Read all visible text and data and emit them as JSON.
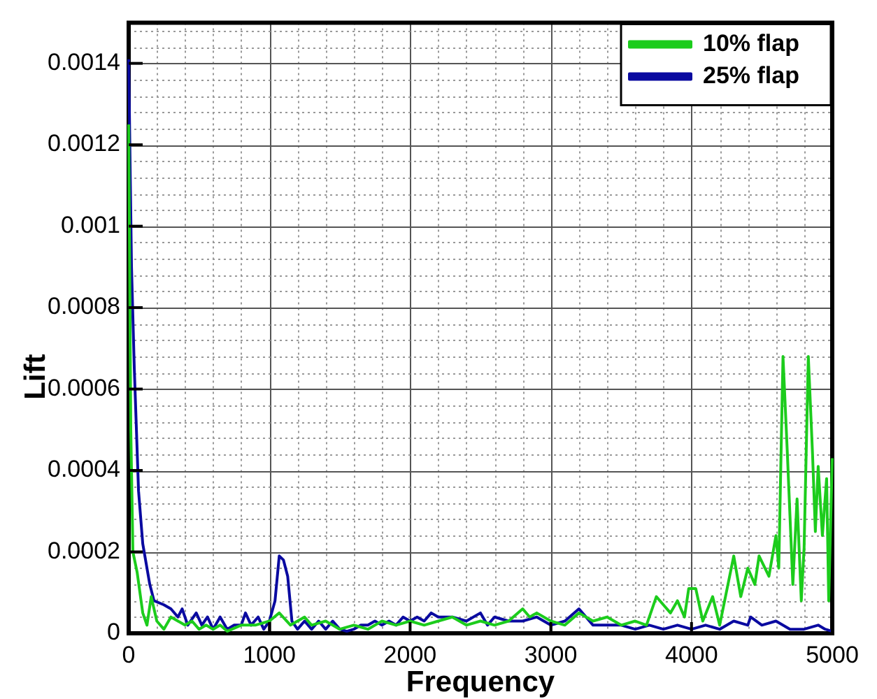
{
  "chart_data": {
    "type": "line",
    "xlabel": "Frequency",
    "ylabel": "Lift",
    "xlim": [
      0,
      5000
    ],
    "ylim": [
      0,
      0.0015
    ],
    "xticks": [
      0,
      {
        "value": 200,
        "label": null
      },
      {
        "value": 400,
        "label": null
      },
      {
        "value": 600,
        "label": null
      },
      {
        "value": 800,
        "label": null
      },
      1000,
      {
        "value": 1200,
        "label": null
      },
      {
        "value": 1400,
        "label": null
      },
      {
        "value": 1600,
        "label": null
      },
      {
        "value": 1800,
        "label": null
      },
      2000,
      {
        "value": 2200,
        "label": null
      },
      {
        "value": 2400,
        "label": null
      },
      {
        "value": 2600,
        "label": null
      },
      {
        "value": 2800,
        "label": null
      },
      3000,
      {
        "value": 3200,
        "label": null
      },
      {
        "value": 3400,
        "label": null
      },
      {
        "value": 3600,
        "label": null
      },
      {
        "value": 3800,
        "label": null
      },
      4000,
      {
        "value": 4200,
        "label": null
      },
      {
        "value": 4400,
        "label": null
      },
      {
        "value": 4600,
        "label": null
      },
      {
        "value": 4800,
        "label": null
      },
      5000
    ],
    "yticks": [
      0,
      {
        "value": 4e-05,
        "label": null
      },
      {
        "value": 8e-05,
        "label": null
      },
      {
        "value": 0.00012,
        "label": null
      },
      {
        "value": 0.00016,
        "label": null
      },
      0.0002,
      {
        "value": 0.00024,
        "label": null
      },
      {
        "value": 0.00028,
        "label": null
      },
      {
        "value": 0.00032,
        "label": null
      },
      {
        "value": 0.00036,
        "label": null
      },
      0.0004,
      {
        "value": 0.00044,
        "label": null
      },
      {
        "value": 0.00048,
        "label": null
      },
      {
        "value": 0.00052,
        "label": null
      },
      {
        "value": 0.00056,
        "label": null
      },
      0.0006,
      {
        "value": 0.00064,
        "label": null
      },
      {
        "value": 0.00068,
        "label": null
      },
      {
        "value": 0.00072,
        "label": null
      },
      {
        "value": 0.00076,
        "label": null
      },
      0.0008,
      {
        "value": 0.00084,
        "label": null
      },
      {
        "value": 0.00088,
        "label": null
      },
      {
        "value": 0.00092,
        "label": null
      },
      {
        "value": 0.00096,
        "label": null
      },
      0.001,
      {
        "value": 0.00104,
        "label": null
      },
      {
        "value": 0.00108,
        "label": null
      },
      {
        "value": 0.00112,
        "label": null
      },
      {
        "value": 0.00116,
        "label": null
      },
      0.0012,
      {
        "value": 0.00124,
        "label": null
      },
      {
        "value": 0.00128,
        "label": null
      },
      {
        "value": 0.00132,
        "label": null
      },
      {
        "value": 0.00136,
        "label": null
      },
      0.0014,
      {
        "value": 0.00144,
        "label": null
      },
      {
        "value": 0.00148,
        "label": null
      }
    ],
    "grid": true,
    "legend": "top right",
    "marker": "none",
    "line_style": "solid",
    "series": [
      {
        "name": "10% flap",
        "color": "#1ccc1c",
        "x": [
          0,
          15,
          30,
          60,
          100,
          130,
          160,
          200,
          250,
          300,
          350,
          400,
          450,
          500,
          550,
          600,
          650,
          700,
          800,
          900,
          1000,
          1070,
          1150,
          1250,
          1300,
          1400,
          1500,
          1600,
          1700,
          1800,
          1900,
          2000,
          2100,
          2200,
          2300,
          2400,
          2500,
          2600,
          2700,
          2800,
          2850,
          2900,
          3000,
          3100,
          3200,
          3300,
          3400,
          3500,
          3600,
          3680,
          3750,
          3800,
          3850,
          3900,
          3950,
          3980,
          4030,
          4080,
          4150,
          4200,
          4300,
          4350,
          4400,
          4450,
          4480,
          4550,
          4600,
          4620,
          4650,
          4680,
          4720,
          4750,
          4780,
          4800,
          4830,
          4860,
          4880,
          4900,
          4930,
          4960,
          4975,
          5000
        ],
        "values": [
          0.00125,
          0.0005,
          0.0002,
          0.00015,
          5e-05,
          2e-05,
          9e-05,
          3e-05,
          1e-05,
          4e-05,
          3e-05,
          2e-05,
          3e-05,
          1e-05,
          2e-05,
          1e-05,
          2e-05,
          5e-06,
          2e-05,
          2e-05,
          3e-05,
          5e-05,
          2e-05,
          4e-05,
          2e-05,
          3e-05,
          1e-05,
          2e-05,
          1e-05,
          3e-05,
          2e-05,
          3e-05,
          2e-05,
          3e-05,
          4e-05,
          2e-05,
          3e-05,
          2e-05,
          3e-05,
          6e-05,
          4e-05,
          5e-05,
          3e-05,
          2e-05,
          5e-05,
          3e-05,
          4e-05,
          2e-05,
          3e-05,
          2e-05,
          9e-05,
          7e-05,
          5e-05,
          8e-05,
          4e-05,
          0.00011,
          0.00011,
          3e-05,
          9e-05,
          2e-05,
          0.00019,
          9e-05,
          0.00016,
          0.00012,
          0.00019,
          0.00014,
          0.00024,
          0.00016,
          0.00068,
          0.00045,
          0.00012,
          0.00033,
          8e-05,
          0.00021,
          0.00068,
          0.00044,
          0.00025,
          0.00041,
          0.00024,
          0.00038,
          8e-05,
          0.00043
        ]
      },
      {
        "name": "25% flap",
        "color": "#0a0aa0",
        "x": [
          0,
          20,
          40,
          70,
          100,
          150,
          180,
          250,
          300,
          350,
          380,
          420,
          480,
          520,
          560,
          600,
          650,
          700,
          750,
          800,
          830,
          870,
          920,
          960,
          1000,
          1040,
          1070,
          1100,
          1130,
          1160,
          1200,
          1250,
          1300,
          1350,
          1400,
          1450,
          1500,
          1550,
          1600,
          1650,
          1700,
          1750,
          1800,
          1850,
          1900,
          1950,
          2000,
          2050,
          2100,
          2150,
          2200,
          2300,
          2400,
          2500,
          2550,
          2600,
          2700,
          2800,
          2900,
          3000,
          3100,
          3200,
          3300,
          3400,
          3500,
          3600,
          3700,
          3800,
          3900,
          4000,
          4100,
          4200,
          4300,
          4400,
          4420,
          4500,
          4600,
          4700,
          4800,
          4900,
          4950,
          5000
        ],
        "values": [
          0.00141,
          0.0009,
          0.00065,
          0.00035,
          0.00022,
          0.00012,
          8e-05,
          7e-05,
          6e-05,
          4e-05,
          6e-05,
          2e-05,
          5e-05,
          2e-05,
          4e-05,
          1e-05,
          4e-05,
          1e-05,
          2e-05,
          2e-05,
          5e-05,
          2e-05,
          4e-05,
          1e-05,
          3e-05,
          8e-05,
          0.00019,
          0.00018,
          0.00014,
          3e-05,
          1e-05,
          3e-05,
          1e-05,
          3e-05,
          1e-05,
          3e-05,
          1e-05,
          5e-06,
          1e-05,
          2e-05,
          2e-05,
          3e-05,
          2e-05,
          3e-05,
          2e-05,
          4e-05,
          3e-05,
          4e-05,
          3e-05,
          5e-05,
          4e-05,
          4e-05,
          3e-05,
          5e-05,
          2e-05,
          4e-05,
          3e-05,
          3e-05,
          4e-05,
          2e-05,
          3e-05,
          6e-05,
          2e-05,
          2e-05,
          2e-05,
          1e-05,
          2e-05,
          1e-05,
          2e-05,
          1e-05,
          2e-05,
          1e-05,
          3e-05,
          2e-05,
          4e-05,
          2e-05,
          3e-05,
          1e-05,
          1e-05,
          2e-05,
          1e-05,
          5e-06
        ]
      }
    ]
  }
}
